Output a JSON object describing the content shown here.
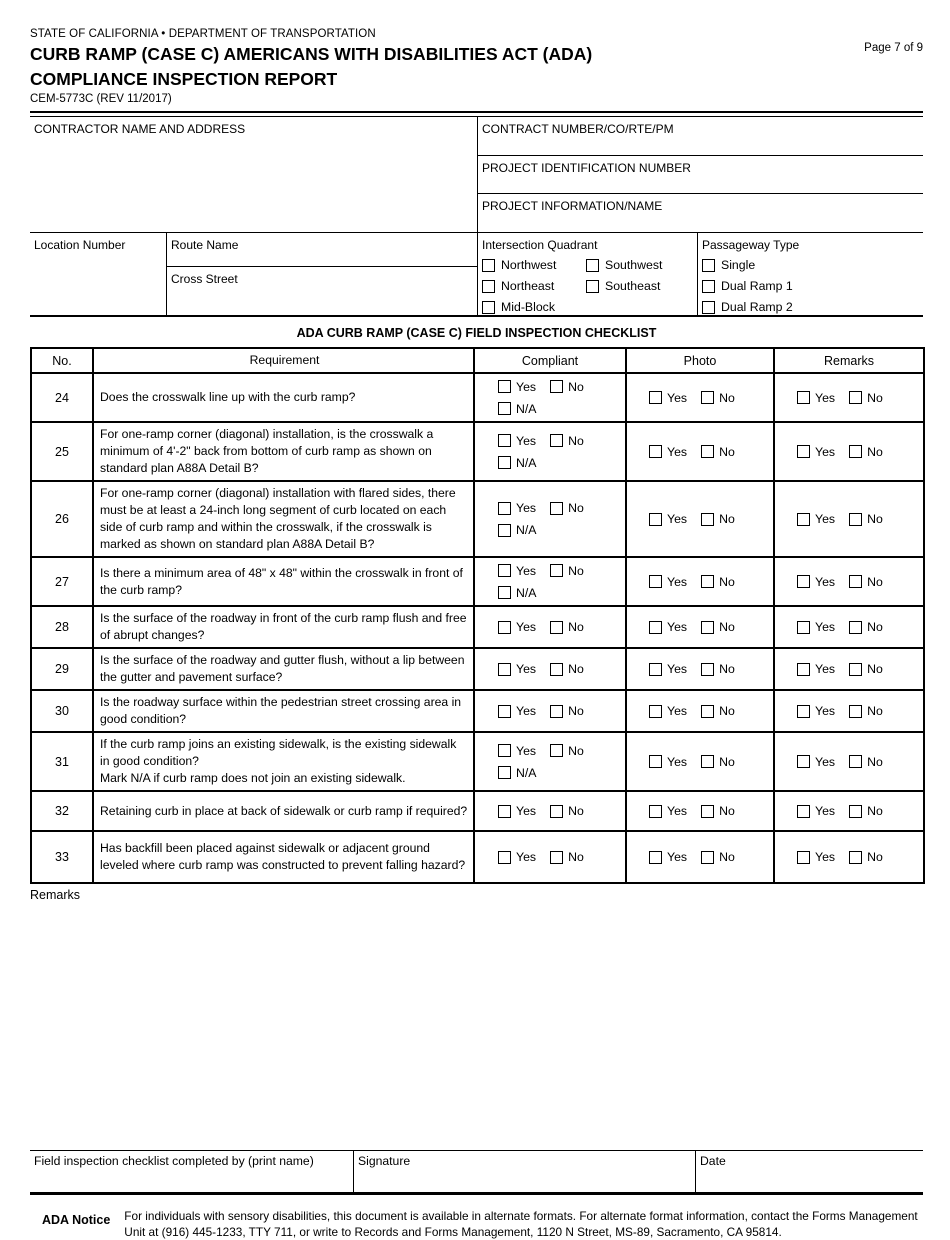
{
  "header": {
    "agency_line": "STATE OF CALIFORNIA • DEPARTMENT OF TRANSPORTATION",
    "title_line1": "CURB RAMP (CASE C) AMERICANS WITH DISABILITIES ACT (ADA)",
    "title_line2": "COMPLIANCE INSPECTION REPORT",
    "form_number": "CEM-5773C (REV 11/2017)",
    "page_indicator": "Page 7 of 9"
  },
  "project_info": {
    "contractor_label": "CONTRACTOR NAME AND ADDRESS",
    "contract_number_label": "CONTRACT NUMBER/CO/RTE/PM",
    "project_id_label": "PROJECT IDENTIFICATION NUMBER",
    "project_name_label": "PROJECT INFORMATION/NAME"
  },
  "location_info": {
    "location_number_label": "Location Number",
    "route_name_label": "Route Name",
    "cross_street_label": "Cross Street",
    "intersection_quadrant": {
      "label": "Intersection Quadrant",
      "options": [
        "Northwest",
        "Southwest",
        "Northeast",
        "Southeast",
        "Mid-Block"
      ]
    },
    "passageway_type": {
      "label": "Passageway Type",
      "options": [
        "Single",
        "Dual Ramp 1",
        "Dual Ramp 2"
      ]
    }
  },
  "checklist": {
    "title": "ADA CURB RAMP (CASE C) FIELD INSPECTION CHECKLIST",
    "columns": [
      "No.",
      "Requirement",
      "Compliant",
      "Photo",
      "Remarks"
    ],
    "option_labels": {
      "yes": "Yes",
      "no": "No",
      "na": "N/A"
    },
    "rows": [
      {
        "no": "24",
        "requirement": "Does the crosswalk line up with the curb ramp?",
        "has_na": true
      },
      {
        "no": "25",
        "requirement": "For one-ramp corner (diagonal) installation, is the crosswalk a minimum of 4'-2\" back from bottom of curb ramp as shown on standard plan A88A Detail B?",
        "has_na": true
      },
      {
        "no": "26",
        "requirement": "For one-ramp corner (diagonal) installation with flared sides, there must be at least a 24-inch long segment of curb located on each side of curb ramp and within the crosswalk, if the crosswalk is marked as shown on standard plan A88A Detail B?",
        "has_na": true
      },
      {
        "no": "27",
        "requirement": "Is there a minimum area of 48\" x 48\" within the crosswalk in front of the curb ramp?",
        "has_na": true
      },
      {
        "no": "28",
        "requirement": "Is the surface of the roadway in front of the curb ramp flush and free of abrupt changes?",
        "has_na": false
      },
      {
        "no": "29",
        "requirement": "Is the surface of the roadway and gutter flush, without a lip between the gutter and pavement surface?",
        "has_na": false
      },
      {
        "no": "30",
        "requirement": "Is the roadway surface within the pedestrian street crossing area in good condition?",
        "has_na": false
      },
      {
        "no": "31",
        "requirement": "If the curb ramp joins an existing sidewalk, is the existing sidewalk in good condition?\nMark N/A if curb ramp does not join an existing sidewalk.",
        "has_na": true
      },
      {
        "no": "32",
        "requirement": "Retaining curb in place at back of sidewalk or curb ramp if required?",
        "has_na": false
      },
      {
        "no": "33",
        "requirement": "Has backfill been placed against sidewalk or adjacent ground leveled where curb ramp was constructed to prevent falling hazard?",
        "has_na": false
      }
    ]
  },
  "remarks_label": "Remarks",
  "signature_section": {
    "completed_by_label": "Field inspection checklist completed by (print name)",
    "signature_label": "Signature",
    "date_label": "Date"
  },
  "ada_notice": {
    "label": "ADA Notice",
    "text": "For individuals with sensory disabilities, this document is available in alternate formats. For alternate format information, contact the Forms Management Unit at (916) 445-1233, TTY 711, or write to Records and Forms Management, 1120 N Street, MS-89, Sacramento, CA 95814."
  }
}
